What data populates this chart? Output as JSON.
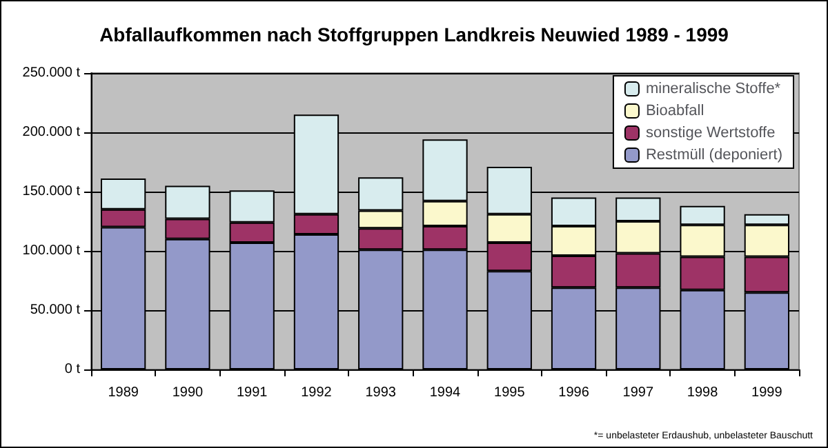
{
  "chart_data": {
    "type": "bar",
    "title": "Abfallaufkommen nach Stoffgruppen Landkreis Neuwied 1989 - 1999",
    "categories": [
      "1989",
      "1990",
      "1991",
      "1992",
      "1993",
      "1994",
      "1995",
      "1996",
      "1997",
      "1998",
      "1999"
    ],
    "stacked": true,
    "series": [
      {
        "name": "Restmüll (deponiert)",
        "color": "#9399c9",
        "values": [
          120000,
          110000,
          107000,
          114000,
          101000,
          101000,
          83000,
          69000,
          69000,
          67000,
          65000
        ]
      },
      {
        "name": "sonstige Wertstoffe",
        "color": "#9e3366",
        "values": [
          15000,
          17000,
          17000,
          17000,
          18000,
          20000,
          24000,
          27000,
          29000,
          28000,
          30000
        ]
      },
      {
        "name": "Bioabfall",
        "color": "#fbf8cc",
        "values": [
          null,
          null,
          null,
          null,
          15000,
          21000,
          24000,
          25000,
          27000,
          27000,
          27000
        ]
      },
      {
        "name": "mineralische Stoffe*",
        "color": "#d8ecee",
        "values": [
          26000,
          28000,
          27000,
          84000,
          28000,
          52000,
          40000,
          24000,
          20000,
          16000,
          9000
        ]
      }
    ],
    "ylim": [
      0,
      250000
    ],
    "yticks": [
      {
        "value": 0,
        "label": "0 t"
      },
      {
        "value": 50000,
        "label": "50.000 t"
      },
      {
        "value": 100000,
        "label": "100.000 t"
      },
      {
        "value": 150000,
        "label": "150.000 t"
      },
      {
        "value": 200000,
        "label": "200.000 t"
      },
      {
        "value": 250000,
        "label": "250.000 t"
      }
    ],
    "grid": "y",
    "legend": "top right",
    "annotations": [
      "*= unbelasteter Erdaushub, unbelasteter Bauschutt"
    ]
  }
}
